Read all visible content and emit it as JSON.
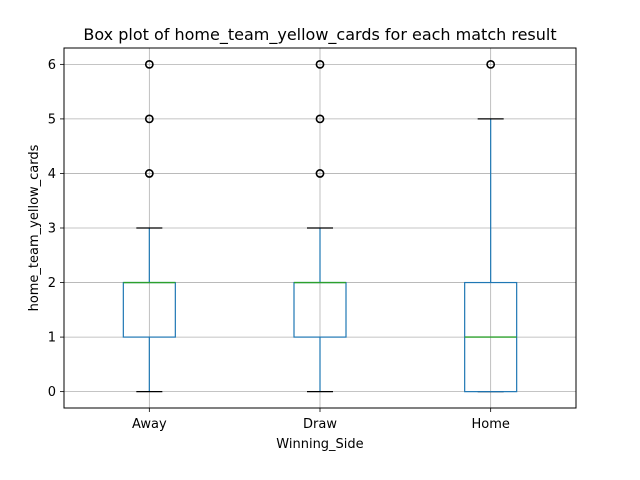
{
  "chart_data": {
    "type": "box",
    "title": "Box plot of home_team_yellow_cards for each match result",
    "xlabel": "Winning_Side",
    "ylabel": "home_team_yellow_cards",
    "ylim": [
      -0.3,
      6.3
    ],
    "yticks": [
      0,
      1,
      2,
      3,
      4,
      5,
      6
    ],
    "grid": true,
    "colors": {
      "box": "#1f77b4",
      "median": "#2ca02c",
      "whisker": "#1f77b4",
      "cap": "#000000",
      "flier": "#000000",
      "grid": "#b0b0b0"
    },
    "categories": [
      "Away",
      "Draw",
      "Home"
    ],
    "boxes": [
      {
        "category": "Away",
        "whisker_low": 0,
        "q1": 1,
        "median": 2,
        "q3": 2,
        "whisker_high": 3,
        "outliers": [
          4,
          5,
          6
        ]
      },
      {
        "category": "Draw",
        "whisker_low": 0,
        "q1": 1,
        "median": 2,
        "q3": 2,
        "whisker_high": 3,
        "outliers": [
          4,
          5,
          6
        ]
      },
      {
        "category": "Home",
        "whisker_low": 0,
        "q1": 0,
        "median": 1,
        "q3": 2,
        "whisker_high": 5,
        "outliers": [
          6
        ]
      }
    ]
  }
}
